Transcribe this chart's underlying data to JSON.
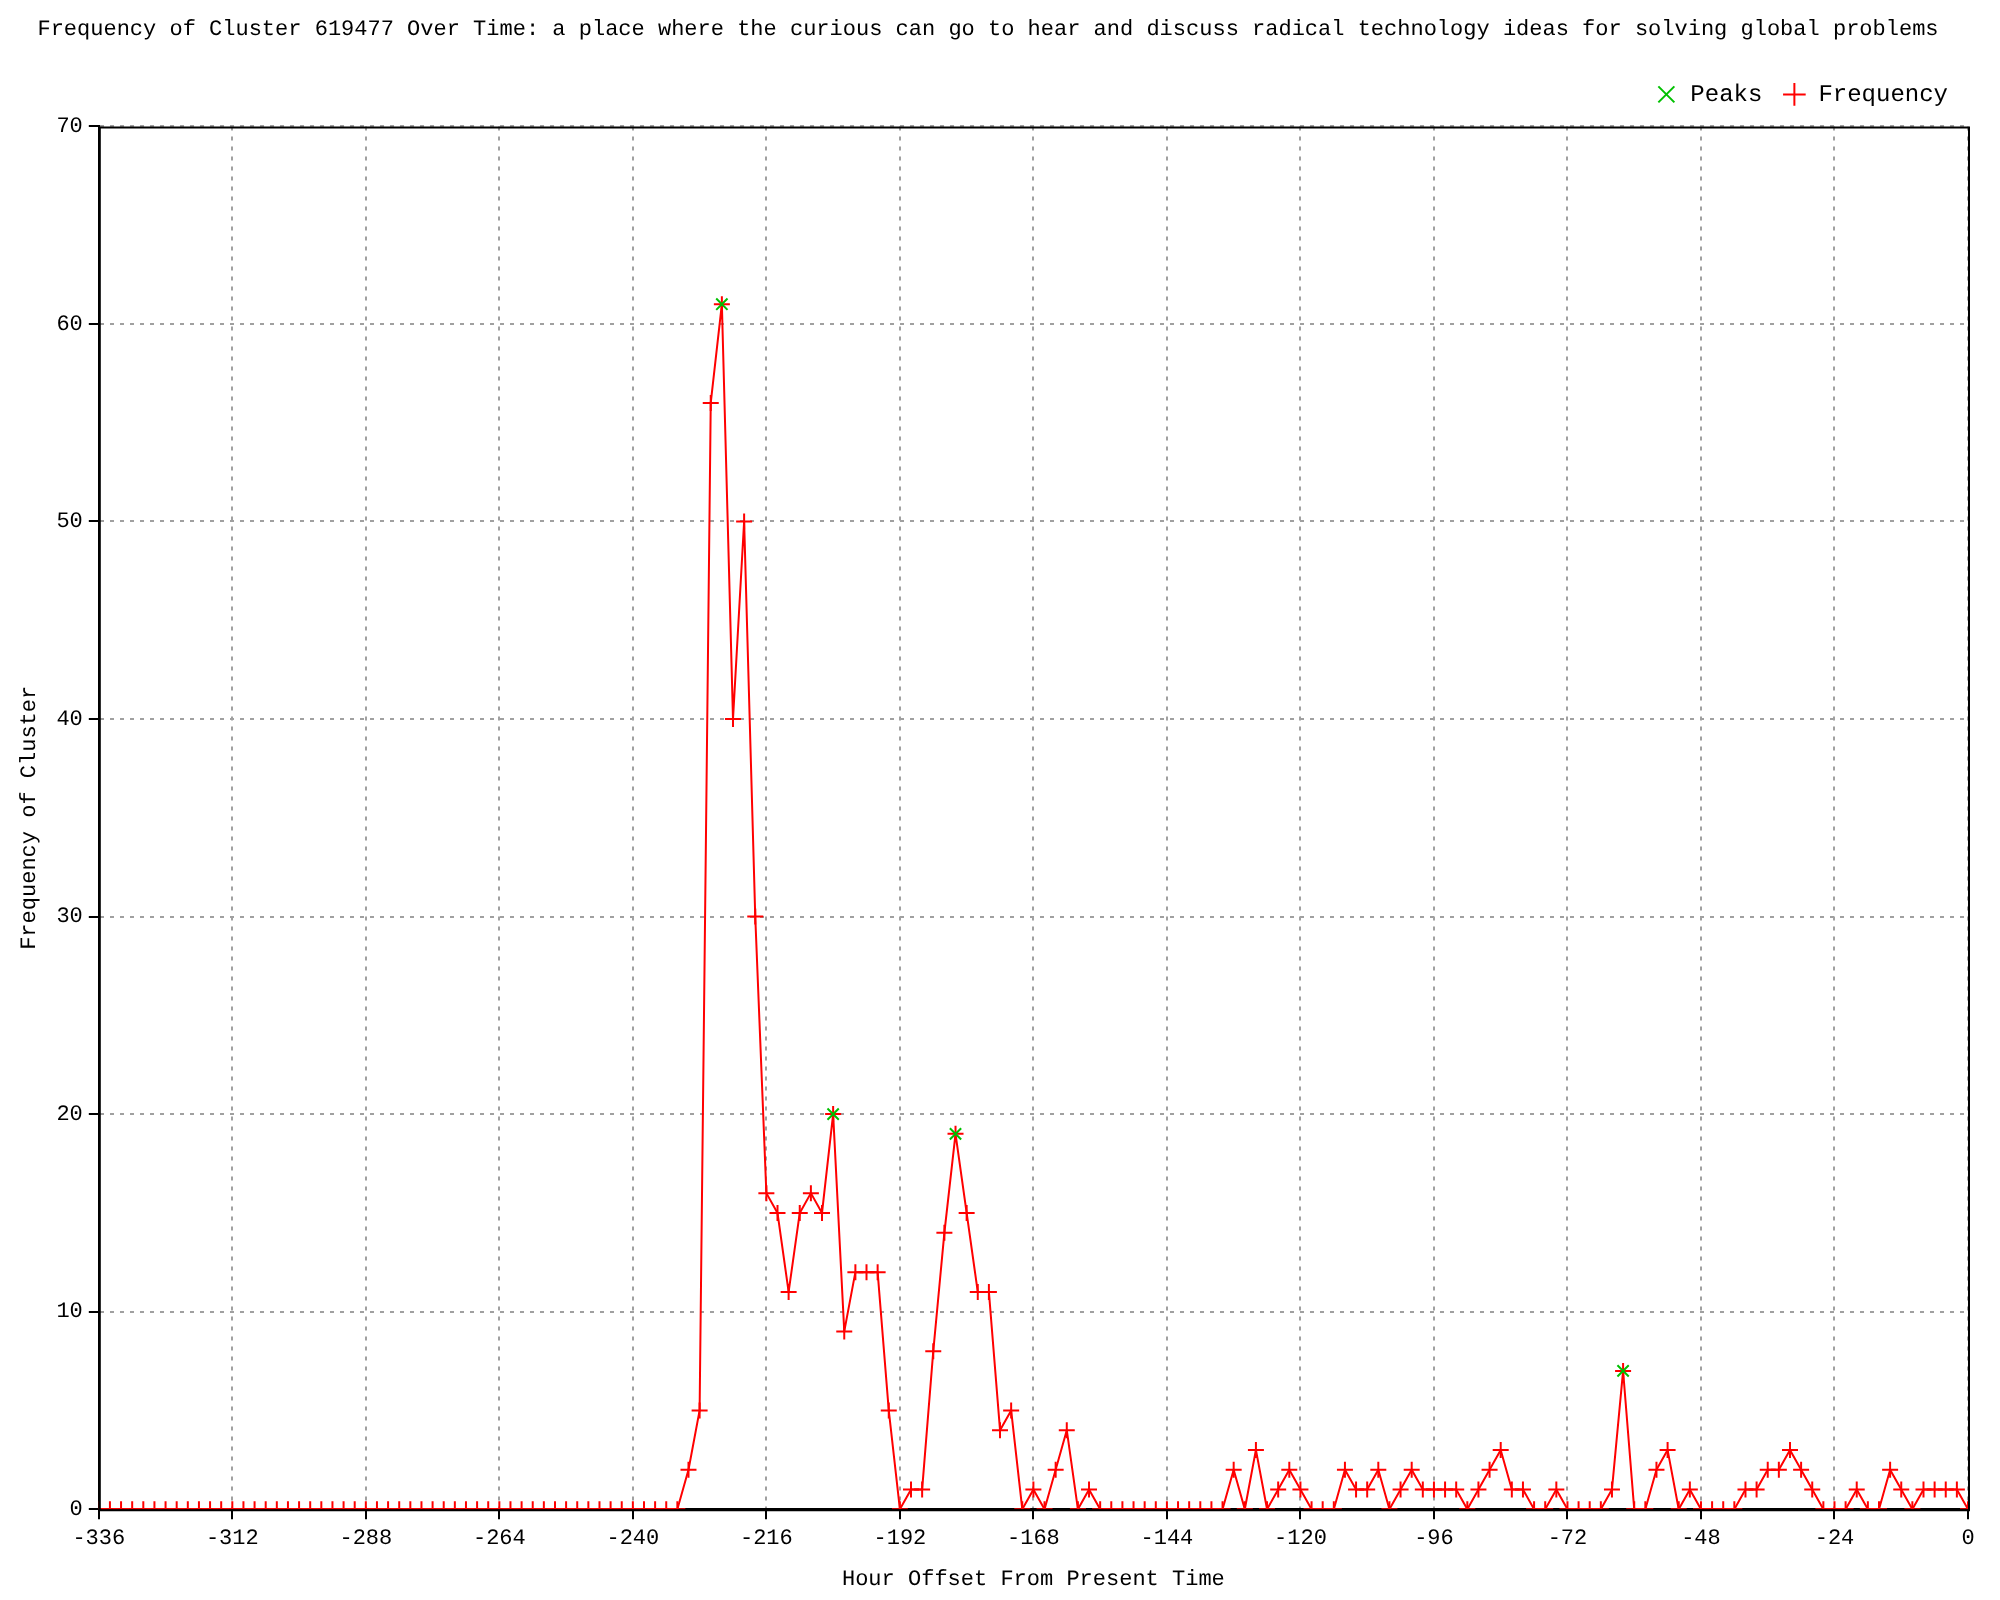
{
  "chart_data": {
    "type": "line",
    "title": "Frequency of Cluster 619477 Over Time: a place where the curious can go to hear and discuss radical technology ideas for solving global problems",
    "xlabel": "Hour Offset From Present Time",
    "ylabel": "Frequency of Cluster",
    "xlim": [
      -336,
      0
    ],
    "xticks": [
      -336,
      -312,
      -288,
      -264,
      -240,
      -216,
      -192,
      -168,
      -144,
      -120,
      -96,
      -72,
      -48,
      -24,
      0
    ],
    "ylim": [
      0,
      70
    ],
    "yticks": [
      0,
      10,
      20,
      30,
      40,
      50,
      60,
      70
    ],
    "grid": true,
    "legend": "top right",
    "line_style": "solid",
    "series": [
      {
        "name": "Frequency",
        "color": "#ff0000",
        "marker": "cross",
        "x": [
          -336,
          -334,
          -332,
          -330,
          -328,
          -326,
          -324,
          -322,
          -320,
          -318,
          -316,
          -314,
          -312,
          -310,
          -308,
          -306,
          -304,
          -302,
          -300,
          -298,
          -296,
          -294,
          -292,
          -290,
          -288,
          -286,
          -284,
          -282,
          -280,
          -278,
          -276,
          -274,
          -272,
          -270,
          -268,
          -266,
          -264,
          -262,
          -260,
          -258,
          -256,
          -254,
          -252,
          -250,
          -248,
          -246,
          -244,
          -242,
          -240,
          -238,
          -236,
          -234,
          -232,
          -230,
          -228,
          -226,
          -224,
          -222,
          -220,
          -218,
          -216,
          -214,
          -212,
          -210,
          -208,
          -206,
          -204,
          -202,
          -200,
          -198,
          -196,
          -194,
          -192,
          -190,
          -188,
          -186,
          -184,
          -182,
          -180,
          -178,
          -176,
          -174,
          -172,
          -170,
          -168,
          -166,
          -164,
          -162,
          -160,
          -158,
          -156,
          -154,
          -152,
          -150,
          -148,
          -146,
          -144,
          -142,
          -140,
          -138,
          -136,
          -134,
          -132,
          -130,
          -128,
          -126,
          -124,
          -122,
          -120,
          -118,
          -116,
          -114,
          -112,
          -110,
          -108,
          -106,
          -104,
          -102,
          -100,
          -98,
          -96,
          -94,
          -92,
          -90,
          -88,
          -86,
          -84,
          -82,
          -80,
          -78,
          -76,
          -74,
          -72,
          -70,
          -68,
          -66,
          -64,
          -62,
          -60,
          -58,
          -56,
          -54,
          -52,
          -50,
          -48,
          -46,
          -44,
          -42,
          -40,
          -38,
          -36,
          -34,
          -32,
          -30,
          -28,
          -26,
          -24,
          -22,
          -20,
          -18,
          -16,
          -14,
          -12,
          -10,
          -8,
          -6,
          -4,
          -2,
          0
        ],
        "values": [
          0,
          0,
          0,
          0,
          0,
          0,
          0,
          0,
          0,
          0,
          0,
          0,
          0,
          0,
          0,
          0,
          0,
          0,
          0,
          0,
          0,
          0,
          0,
          0,
          0,
          0,
          0,
          0,
          0,
          0,
          0,
          0,
          0,
          0,
          0,
          0,
          0,
          0,
          0,
          0,
          0,
          0,
          0,
          0,
          0,
          0,
          0,
          0,
          0,
          0,
          0,
          0,
          0,
          2,
          5,
          56,
          61,
          40,
          50,
          30,
          16,
          15,
          11,
          15,
          16,
          15,
          20,
          9,
          12,
          12,
          12,
          5,
          0,
          1,
          1,
          8,
          14,
          19,
          15,
          11,
          11,
          4,
          5,
          0,
          1,
          0,
          2,
          4,
          0,
          1,
          0,
          0,
          0,
          0,
          0,
          0,
          0,
          0,
          0,
          0,
          0,
          0,
          2,
          0,
          3,
          0,
          1,
          2,
          1,
          0,
          0,
          0,
          2,
          1,
          1,
          2,
          0,
          1,
          2,
          1,
          1,
          1,
          1,
          0,
          1,
          2,
          3,
          1,
          1,
          0,
          0,
          1,
          0,
          0,
          0,
          0,
          1,
          7,
          0,
          0,
          2,
          3,
          0,
          1,
          0,
          0,
          0,
          0,
          1,
          1,
          2,
          2,
          3,
          2,
          1,
          0,
          0,
          0,
          1,
          0,
          0,
          2,
          1,
          0,
          1,
          1,
          1,
          1,
          0
        ]
      },
      {
        "name": "Peaks",
        "type": "scatter",
        "color": "#00c000",
        "marker": "cross",
        "x": [
          -224,
          -204,
          -182,
          -62
        ],
        "values": [
          61,
          20,
          19,
          7
        ]
      }
    ]
  }
}
